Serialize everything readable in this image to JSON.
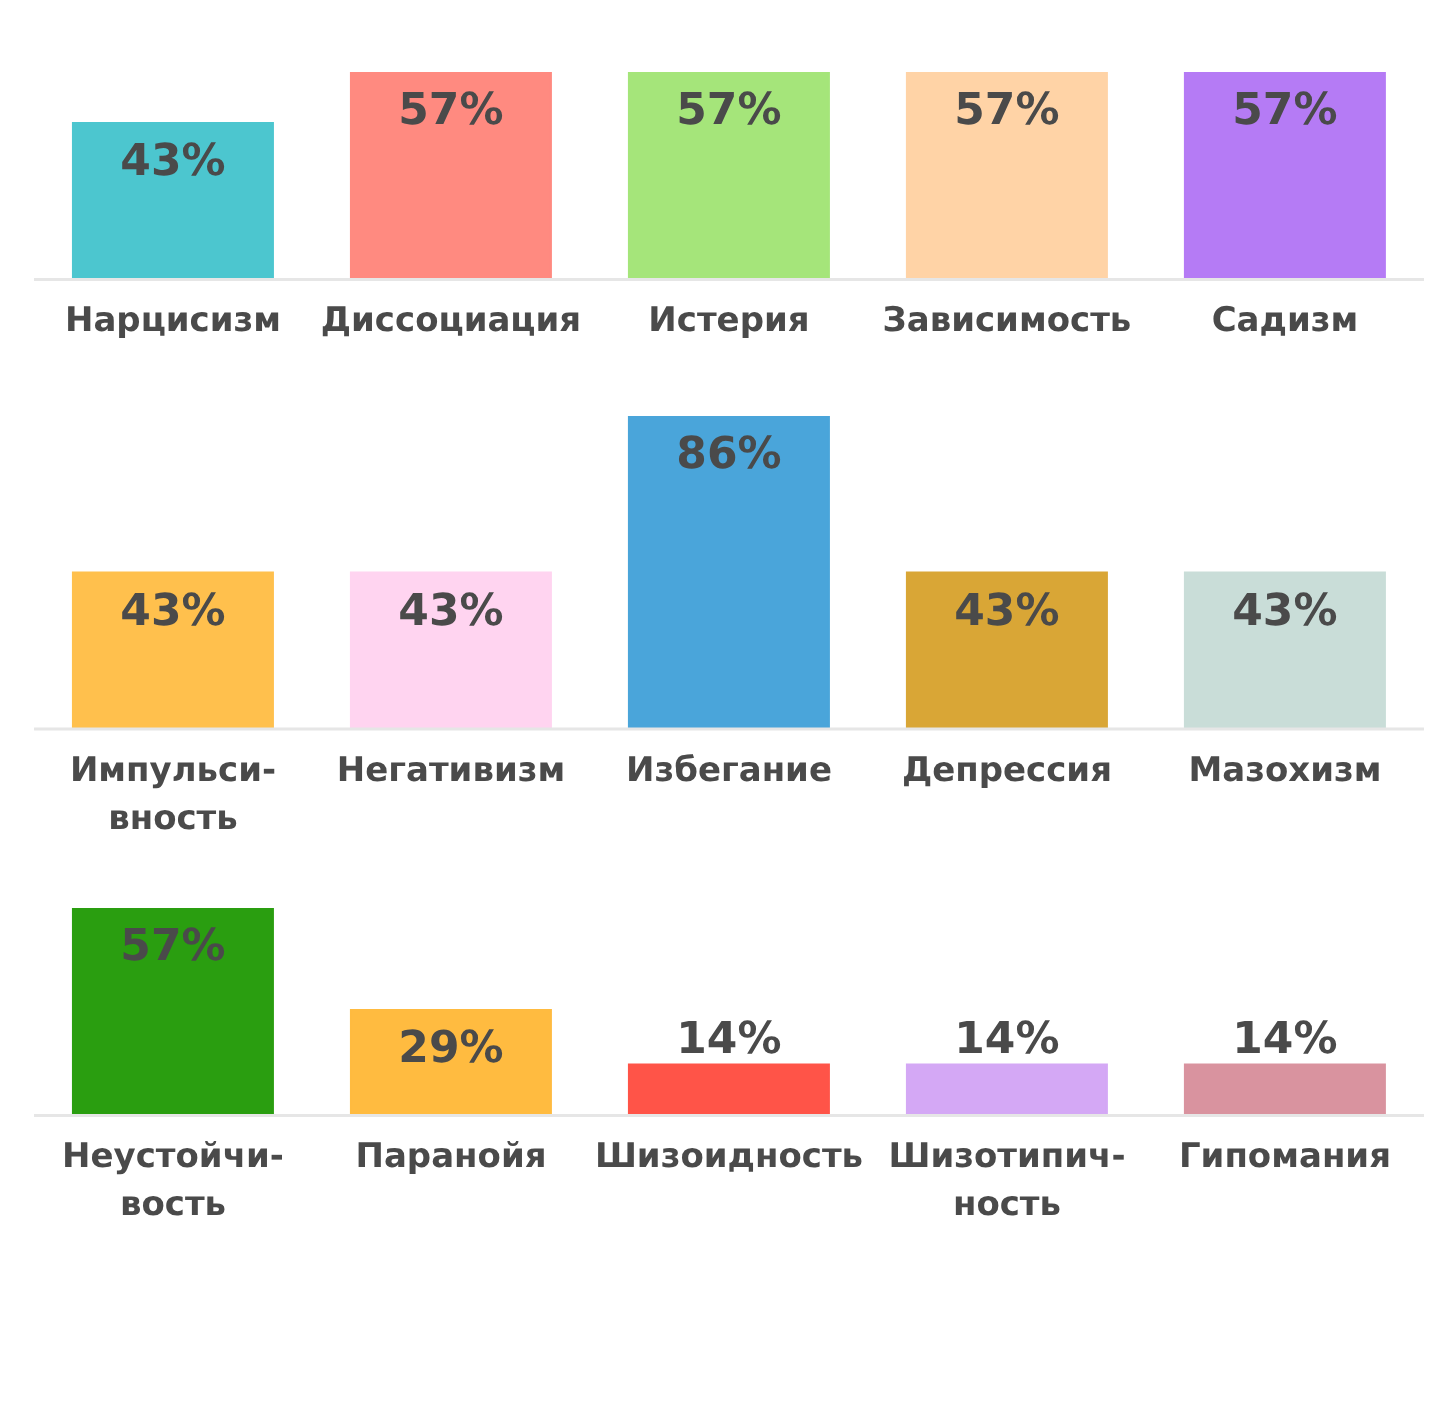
{
  "chart_data": [
    {
      "type": "bar",
      "categories": [
        "Нарцисизм",
        "Диссоциация",
        "Истерия",
        "Зависимость",
        "Садизм"
      ],
      "values": [
        43,
        57,
        57,
        57,
        57
      ],
      "colors": [
        "#4cc6cf",
        "#ff8a80",
        "#a5e57a",
        "#ffd3a6",
        "#b57bf5"
      ],
      "value_labels": [
        "43%",
        "57%",
        "57%",
        "57%",
        "57%"
      ],
      "tick_labels": "x"
    },
    {
      "type": "bar",
      "categories": [
        "Импульси-\nвность",
        "Негативизм",
        "Избегание",
        "Депрессия",
        "Мазохизм"
      ],
      "values": [
        43,
        43,
        86,
        43,
        43
      ],
      "colors": [
        "#ffc04d",
        "#ffd4f0",
        "#4aa5da",
        "#d9a636",
        "#c9ddd8"
      ],
      "value_labels": [
        "43%",
        "43%",
        "86%",
        "43%",
        "43%"
      ],
      "tick_labels": "x"
    },
    {
      "type": "bar",
      "categories": [
        "Неустойчи-\nвость",
        "Паранойя",
        "Шизоидность",
        "Шизотипич-\nность",
        "Гипомания"
      ],
      "values": [
        57,
        29,
        14,
        14,
        14
      ],
      "colors": [
        "#2a9e10",
        "#ffbb40",
        "#ff5448",
        "#d4a8f5",
        "#d9939f"
      ],
      "value_labels": [
        "57%",
        "29%",
        "14%",
        "14%",
        "14%"
      ],
      "tick_labels": "x"
    }
  ]
}
